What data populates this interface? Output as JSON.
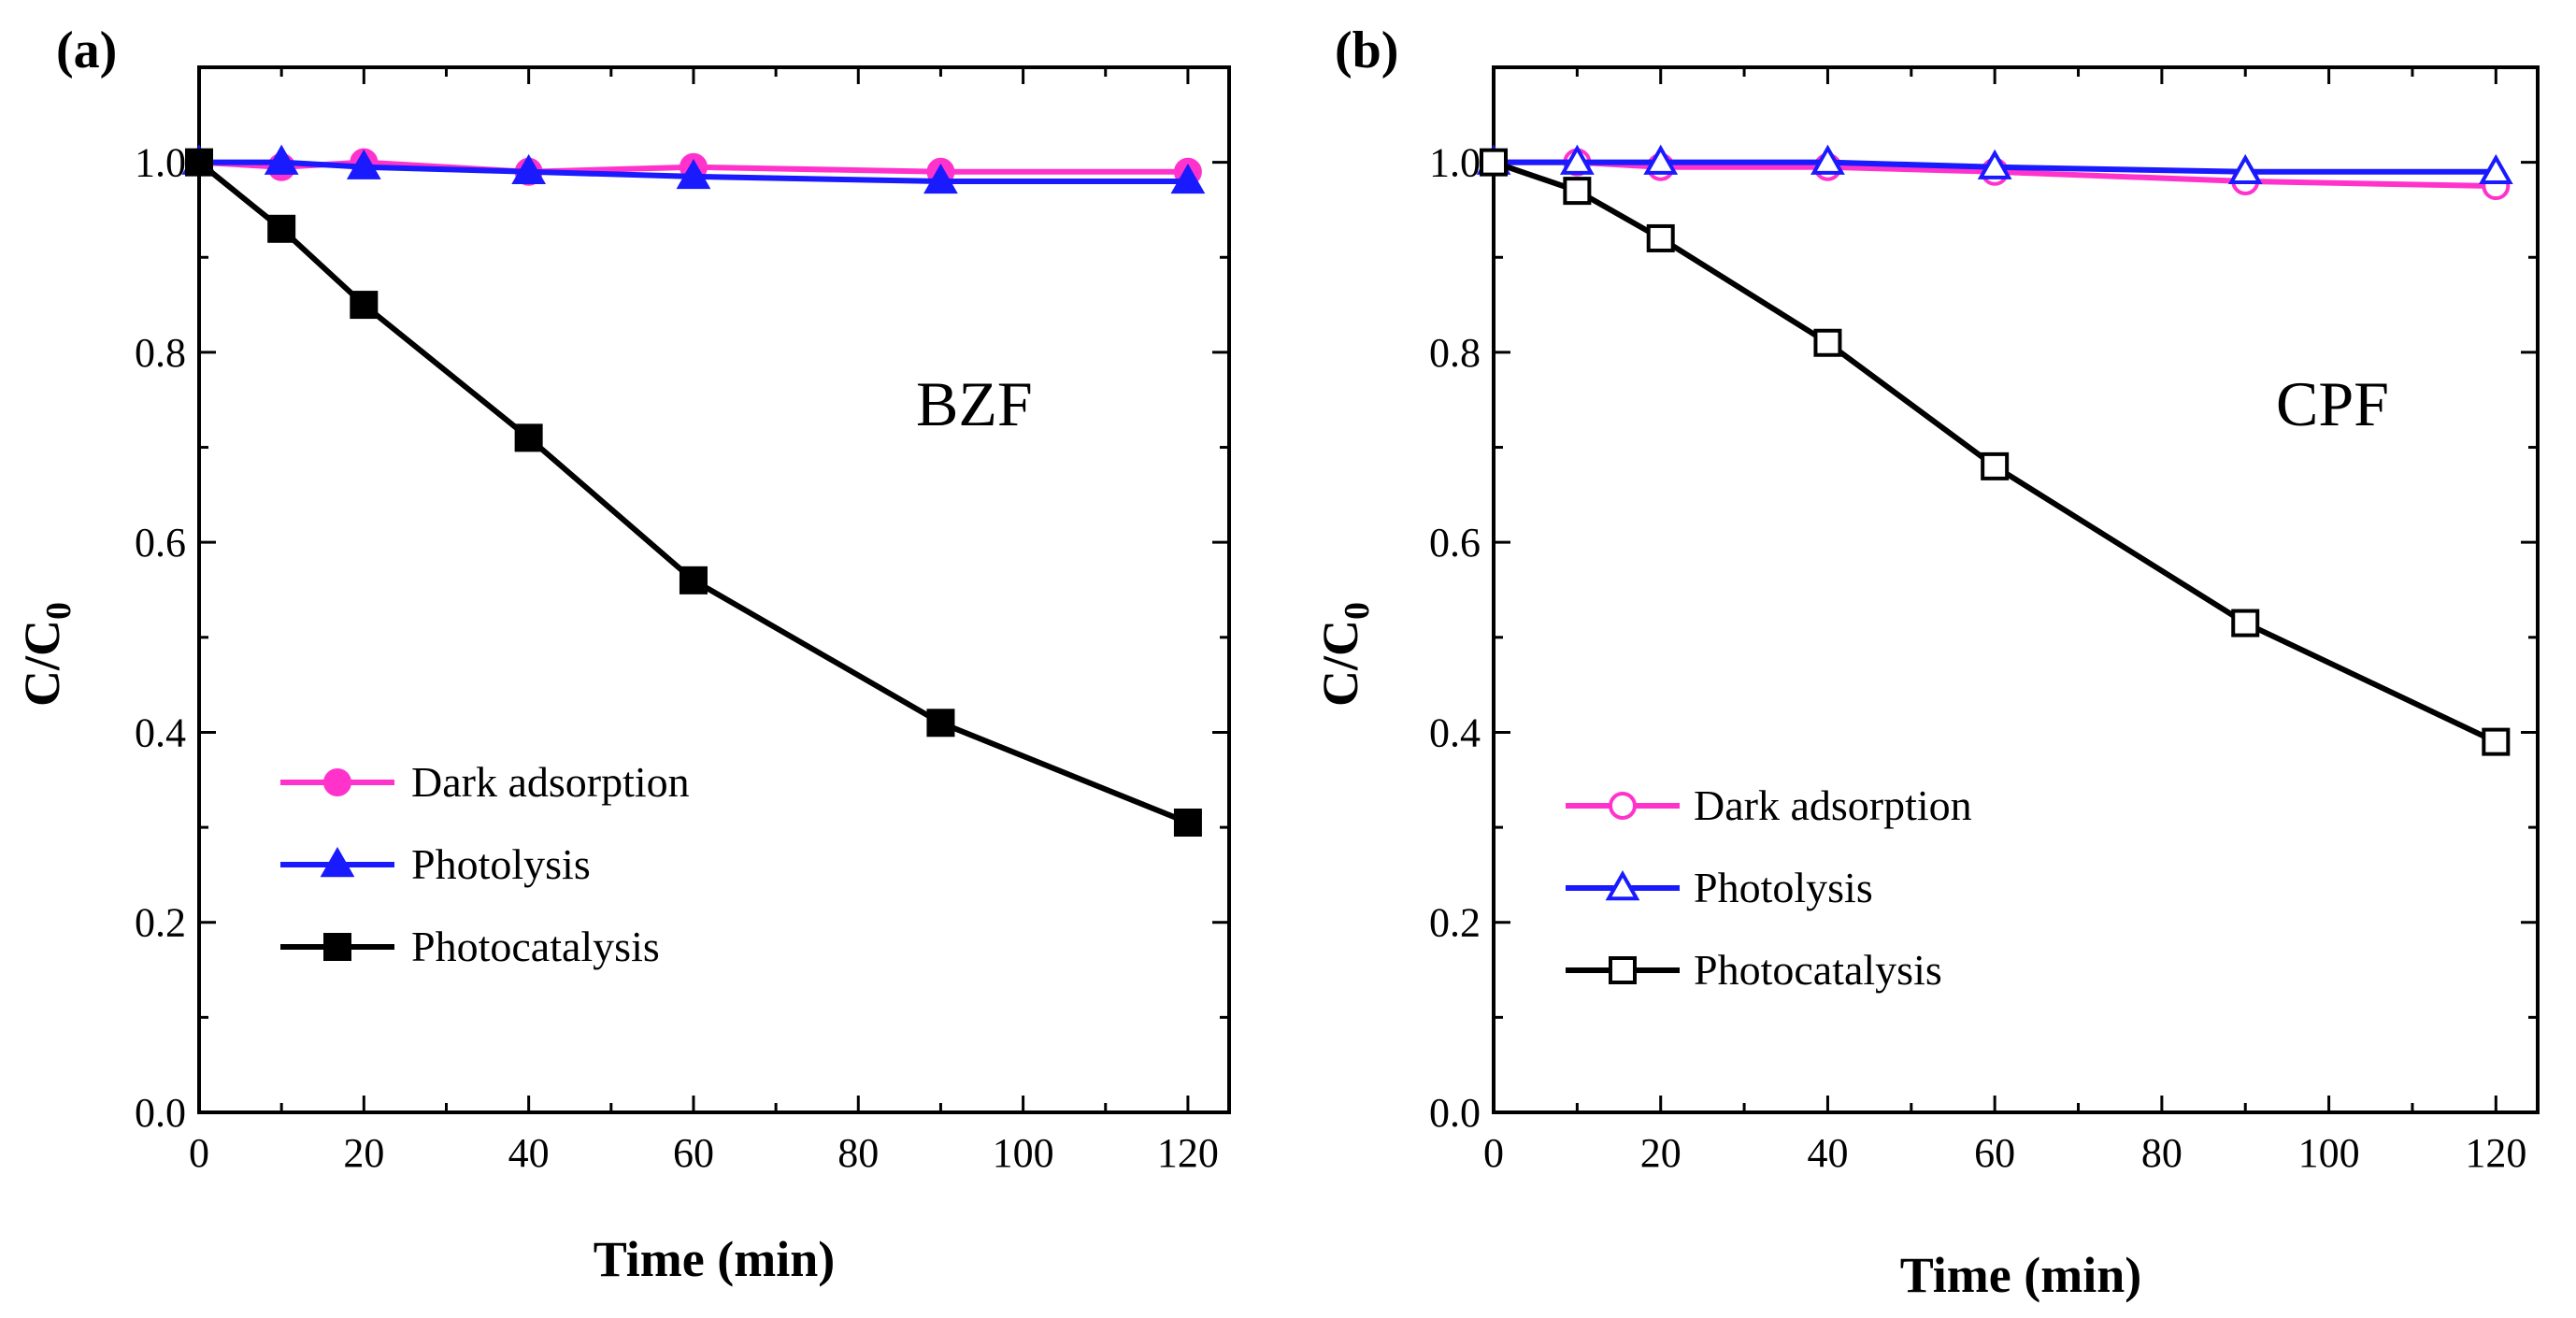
{
  "chart_data": [
    {
      "type": "line",
      "panel_label": "(a)",
      "annotation": "BZF",
      "xlabel": "Time (min)",
      "ylabel": "C/C",
      "ylabel_sub": "0",
      "xlim": [
        0,
        125
      ],
      "ylim": [
        0,
        1.1
      ],
      "xticks": [
        0,
        20,
        40,
        60,
        80,
        100,
        120
      ],
      "yticks": [
        "0.0",
        "0.2",
        "0.4",
        "0.6",
        "0.8",
        "1.0"
      ],
      "grid": false,
      "legend_position": "lower-left",
      "series": [
        {
          "name": "Dark adsorption",
          "color": "#ff33cc",
          "marker": "circle",
          "filled": true,
          "x": [
            0,
            10,
            20,
            40,
            60,
            90,
            120
          ],
          "y": [
            1.0,
            0.995,
            1.0,
            0.99,
            0.995,
            0.99,
            0.99
          ]
        },
        {
          "name": "Photolysis",
          "color": "#1a1aff",
          "marker": "triangle",
          "filled": true,
          "x": [
            0,
            10,
            20,
            40,
            60,
            90,
            120
          ],
          "y": [
            1.0,
            1.0,
            0.995,
            0.99,
            0.985,
            0.98,
            0.98
          ]
        },
        {
          "name": "Photocatalysis",
          "color": "#000000",
          "marker": "square",
          "filled": true,
          "x": [
            0,
            10,
            20,
            40,
            60,
            90,
            120
          ],
          "y": [
            1.0,
            0.93,
            0.85,
            0.71,
            0.56,
            0.41,
            0.305
          ]
        }
      ]
    },
    {
      "type": "line",
      "panel_label": "(b)",
      "annotation": "CPF",
      "xlabel": "Time (min)",
      "ylabel": "C/C",
      "ylabel_sub": "0",
      "xlim": [
        0,
        125
      ],
      "ylim": [
        0,
        1.1
      ],
      "xticks": [
        0,
        20,
        40,
        60,
        80,
        100,
        120
      ],
      "yticks": [
        "0.0",
        "0.2",
        "0.4",
        "0.6",
        "0.8",
        "1.0"
      ],
      "grid": false,
      "legend_position": "lower-left",
      "series": [
        {
          "name": "Dark adsorption",
          "color": "#ff33cc",
          "marker": "circle",
          "filled": false,
          "x": [
            0,
            10,
            20,
            40,
            60,
            90,
            120
          ],
          "y": [
            1.0,
            1.0,
            0.995,
            0.995,
            0.99,
            0.98,
            0.975
          ]
        },
        {
          "name": "Photolysis",
          "color": "#1a1aff",
          "marker": "triangle",
          "filled": false,
          "x": [
            0,
            10,
            20,
            40,
            60,
            90,
            120
          ],
          "y": [
            1.0,
            1.0,
            1.0,
            1.0,
            0.995,
            0.99,
            0.99
          ]
        },
        {
          "name": "Photocatalysis",
          "color": "#000000",
          "marker": "square",
          "filled": false,
          "x": [
            0,
            10,
            20,
            40,
            60,
            90,
            120
          ],
          "y": [
            1.0,
            0.97,
            0.92,
            0.81,
            0.68,
            0.515,
            0.39
          ]
        }
      ]
    }
  ]
}
